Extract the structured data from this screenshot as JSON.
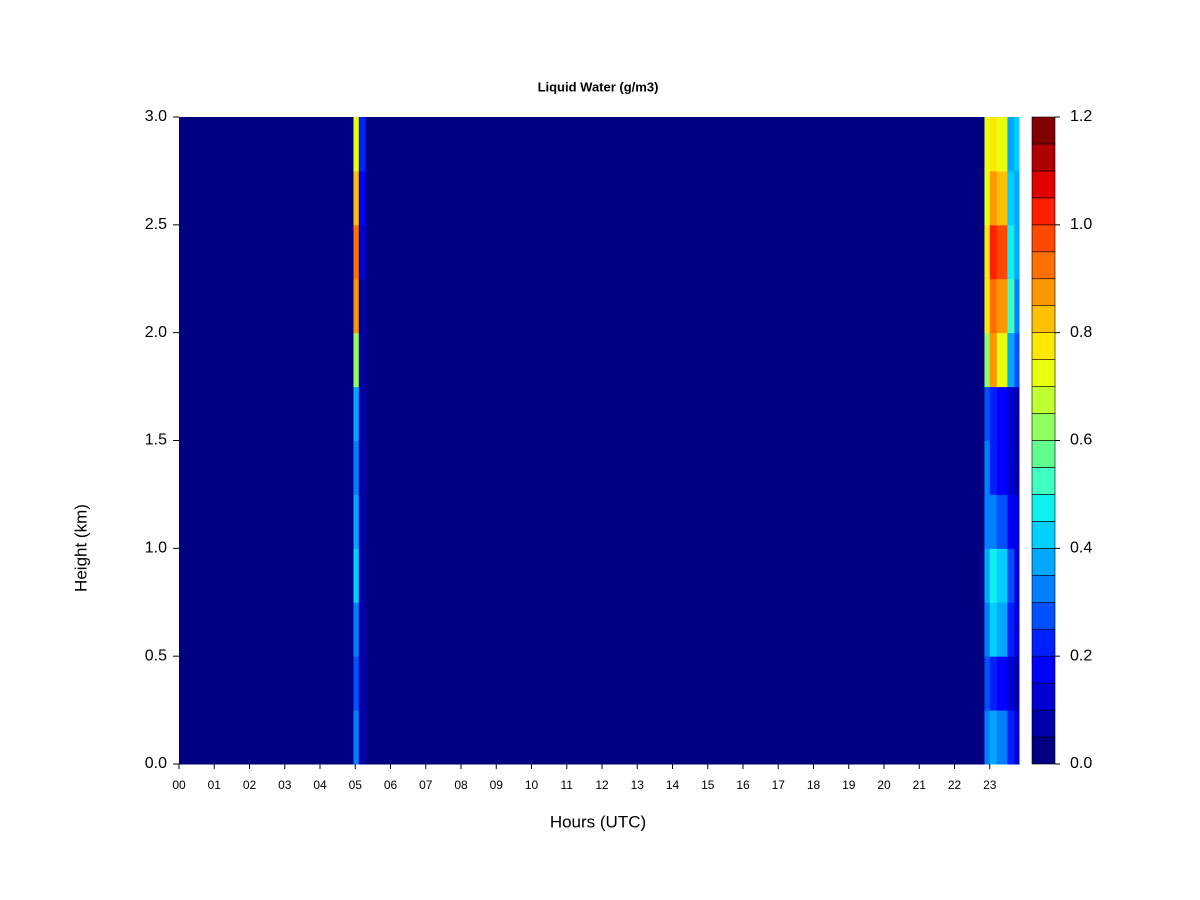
{
  "chart_data": {
    "type": "heatmap",
    "title": "Liquid Water (g/m3)",
    "x_label": "Hours (UTC)",
    "y_label": "Height (km)",
    "x_edges": [
      0,
      4.95,
      5.1,
      5.3,
      22.85,
      23.0,
      23.2,
      23.5,
      23.7,
      23.83
    ],
    "y_edges": [
      0,
      0.25,
      0.5,
      0.75,
      1.0,
      1.25,
      1.5,
      1.75,
      2.0,
      2.25,
      2.5,
      2.75,
      3.0
    ],
    "values": [
      [
        0.02,
        0.3,
        0.08,
        0.02,
        0.3,
        0.35,
        0.3,
        0.2,
        0.1
      ],
      [
        0.02,
        0.25,
        0.08,
        0.02,
        0.25,
        0.2,
        0.15,
        0.1,
        0.08
      ],
      [
        0.02,
        0.3,
        0.08,
        0.02,
        0.3,
        0.4,
        0.35,
        0.2,
        0.1
      ],
      [
        0.02,
        0.4,
        0.08,
        0.02,
        0.35,
        0.45,
        0.4,
        0.25,
        0.12
      ],
      [
        0.02,
        0.35,
        0.08,
        0.02,
        0.3,
        0.3,
        0.25,
        0.15,
        0.1
      ],
      [
        0.02,
        0.3,
        0.08,
        0.02,
        0.3,
        0.2,
        0.15,
        0.1,
        0.08
      ],
      [
        0.02,
        0.35,
        0.08,
        0.02,
        0.25,
        0.2,
        0.15,
        0.1,
        0.08
      ],
      [
        0.02,
        0.6,
        0.08,
        0.02,
        0.6,
        0.85,
        0.7,
        0.35,
        0.25
      ],
      [
        0.02,
        0.85,
        0.08,
        0.02,
        0.75,
        0.9,
        0.85,
        0.5,
        0.3
      ],
      [
        0.02,
        0.9,
        0.1,
        0.02,
        0.75,
        1.0,
        0.95,
        0.45,
        0.35
      ],
      [
        0.02,
        0.8,
        0.15,
        0.02,
        0.7,
        0.85,
        0.8,
        0.4,
        0.35
      ],
      [
        0.02,
        0.7,
        0.2,
        0.02,
        0.7,
        0.75,
        0.7,
        0.35,
        0.4
      ]
    ],
    "xlim": [
      0,
      23.83
    ],
    "ylim": [
      0,
      3.0
    ],
    "xticks": [
      {
        "value": 0,
        "label": "00"
      },
      {
        "value": 1,
        "label": "01"
      },
      {
        "value": 2,
        "label": "02"
      },
      {
        "value": 3,
        "label": "03"
      },
      {
        "value": 4,
        "label": "04"
      },
      {
        "value": 5,
        "label": "05"
      },
      {
        "value": 6,
        "label": "06"
      },
      {
        "value": 7,
        "label": "07"
      },
      {
        "value": 8,
        "label": "08"
      },
      {
        "value": 9,
        "label": "09"
      },
      10,
      11,
      12,
      13,
      14,
      15,
      16,
      17,
      18,
      19,
      20,
      21,
      22,
      23
    ],
    "yticks": [
      {
        "value": 0,
        "label": "0.0"
      },
      0.5,
      {
        "value": 1,
        "label": "1.0"
      },
      1.5,
      {
        "value": 2,
        "label": "2.0"
      },
      2.5,
      {
        "value": 3,
        "label": "3.0"
      }
    ],
    "levels": [
      0,
      0.05,
      0.1,
      0.15,
      0.2,
      0.25,
      0.3,
      0.35,
      0.4,
      0.45,
      0.5,
      0.55,
      0.6,
      0.65,
      0.7,
      0.75,
      0.8,
      0.85,
      0.9,
      0.95,
      1.0,
      1.05,
      1.1,
      1.15,
      1.2
    ],
    "colors": [
      "#000080",
      "#0000AA",
      "#0000D4",
      "#0000FF",
      "#0020FF",
      "#0050FF",
      "#0080FF",
      "#00A8FF",
      "#00D0FF",
      "#10F0F0",
      "#40FFC0",
      "#60FF90",
      "#90FF60",
      "#C0FF30",
      "#E8FF10",
      "#FFE800",
      "#FFC000",
      "#FF9800",
      "#FF7000",
      "#FF4800",
      "#FF2000",
      "#E00000",
      "#B00000",
      "#800000"
    ],
    "colorbar_ticks": [
      {
        "value": 0,
        "label": "0.0"
      },
      0.2,
      0.4,
      0.6,
      0.8,
      {
        "value": 1,
        "label": "1.0"
      },
      {
        "value": 1.2,
        "label": "1.2"
      }
    ]
  }
}
